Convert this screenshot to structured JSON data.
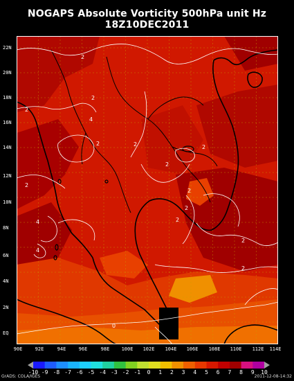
{
  "title": {
    "line1": "NOGAPS Absolute Vorticity 500hPa unit Hz",
    "line2": "18Z10DEC2011"
  },
  "y_labels": [
    "22N",
    "20N",
    "18N",
    "16N",
    "14N",
    "12N",
    "10N",
    "8N",
    "6N",
    "4N",
    "2N",
    "EQ"
  ],
  "x_labels": [
    "90E",
    "92E",
    "94E",
    "96E",
    "98E",
    "100E",
    "102E",
    "104E",
    "106E",
    "108E",
    "110E",
    "112E",
    "114E"
  ],
  "colorbar": {
    "values": [
      "-10",
      "-9",
      "-8",
      "-7",
      "-6",
      "-5",
      "-4",
      "-3",
      "-2",
      "-1",
      "0",
      "1",
      "2",
      "3",
      "4",
      "5",
      "6",
      "7",
      "8",
      "9",
      "10"
    ],
    "colors": [
      "#1a1aff",
      "#1e5cff",
      "#1d8fff",
      "#1ab4ff",
      "#1ed0ff",
      "#20e0e0",
      "#20d0a0",
      "#30c040",
      "#80d020",
      "#c0e030",
      "#e0e020",
      "#f0c000",
      "#f09000",
      "#f06000",
      "#e83800",
      "#d81800",
      "#c00000",
      "#a00000",
      "#d81080",
      "#b000a0"
    ]
  },
  "contour_labels": [
    "2",
    "2",
    "2",
    "2",
    "2",
    "2",
    "2",
    "2",
    "2",
    "2",
    "2",
    "4",
    "4",
    "4",
    "0",
    "2",
    "2"
  ],
  "credit": "GrADS: COLA/IGES",
  "timestamp": "2011-12-08-14:32",
  "colors": {
    "field_base": "#d01800",
    "field_dark": "#a00000",
    "field_orange": "#e84000",
    "field_light_orange": "#f07000"
  }
}
